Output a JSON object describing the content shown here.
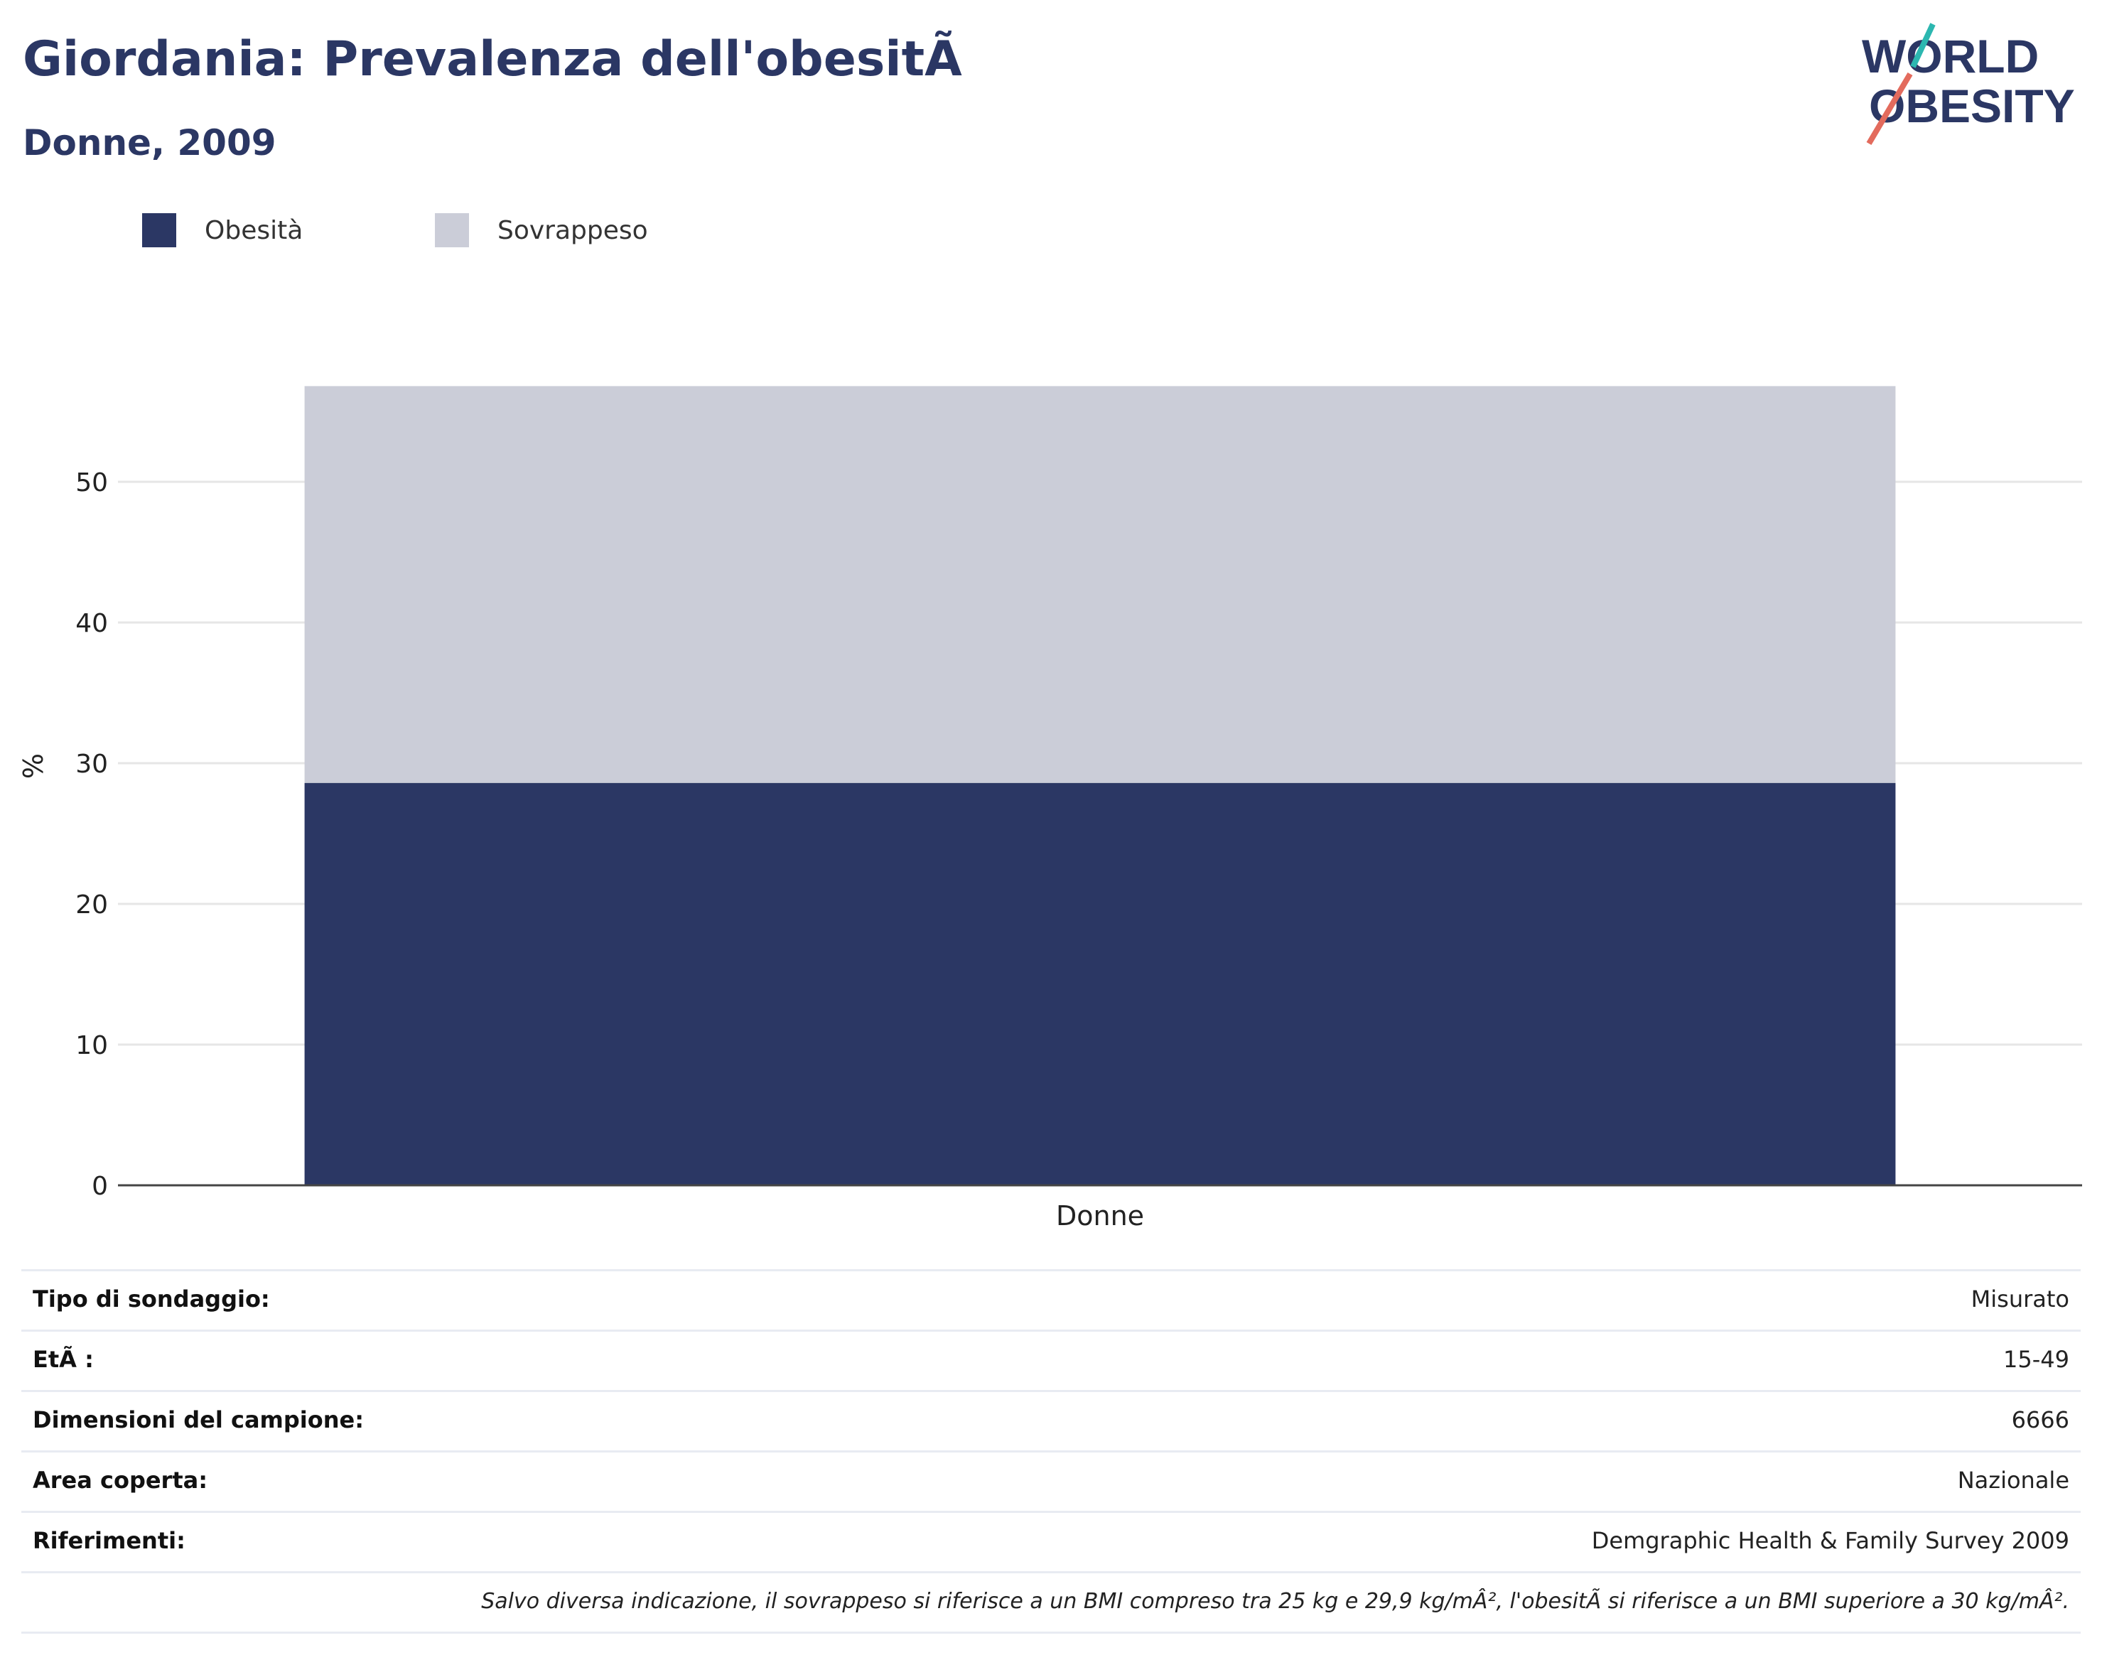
{
  "header": {
    "title": "Giordania: Prevalenza dell'obesitÃ",
    "subtitle": "Donne, 2009"
  },
  "logo": {
    "line1": "WORLD",
    "line2": "OBESITY"
  },
  "colors": {
    "obesity": "#2b3764",
    "overweight": "#cbcdd8",
    "title": "#2b3764",
    "grid": "#e6e6e6"
  },
  "chart_data": {
    "type": "bar",
    "stacked": true,
    "categories": [
      "Donne"
    ],
    "series": [
      {
        "name": "Obesità",
        "values": [
          28.6
        ]
      },
      {
        "name": "Sovrappeso",
        "values": [
          28.2
        ]
      }
    ],
    "ylabel": "%",
    "ylim": [
      0,
      60
    ],
    "yticks": [
      0,
      10,
      20,
      30,
      40,
      50
    ],
    "grid": true,
    "legend_position": "top-left"
  },
  "info": [
    {
      "key": "Tipo di sondaggio:",
      "value": "Misurato"
    },
    {
      "key": "EtÃ :",
      "value": "15-49"
    },
    {
      "key": "Dimensioni del campione:",
      "value": "6666"
    },
    {
      "key": "Area coperta:",
      "value": "Nazionale"
    },
    {
      "key": "Riferimenti:",
      "value": "Demgraphic Health & Family Survey 2009"
    }
  ],
  "note": "Salvo diversa indicazione, il sovrappeso si riferisce a un BMI compreso tra 25 kg e 29,9 kg/mÂ², l'obesitÃ  si riferisce a un BMI superiore a 30 kg/mÂ²."
}
